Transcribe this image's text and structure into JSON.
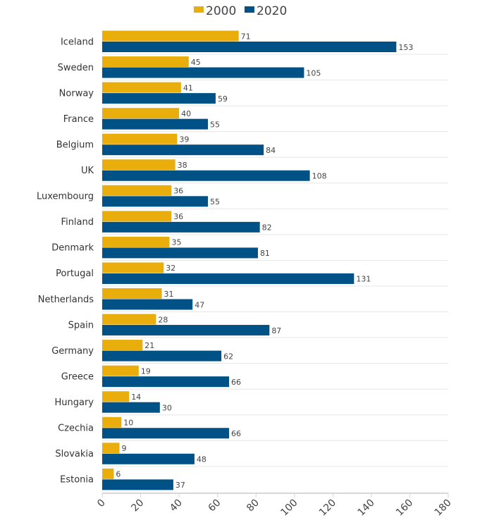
{
  "chart_data": {
    "type": "bar",
    "orientation": "horizontal",
    "title": "",
    "xlabel": "",
    "ylabel": "",
    "xlim": [
      0,
      180
    ],
    "xticks": [
      0,
      20,
      40,
      60,
      80,
      100,
      120,
      140,
      160,
      180
    ],
    "grid": "horizontal separators",
    "legend": "top-center",
    "categories": [
      "Iceland",
      "Sweden",
      "Norway",
      "France",
      "Belgium",
      "UK",
      "Luxembourg",
      "Finland",
      "Denmark",
      "Portugal",
      "Netherlands",
      "Spain",
      "Germany",
      "Greece",
      "Hungary",
      "Czechia",
      "Slovakia",
      "Estonia"
    ],
    "series": [
      {
        "name": "2000",
        "color": "#e9ad0c",
        "values": [
          71,
          45,
          41,
          40,
          39,
          38,
          36,
          36,
          35,
          32,
          31,
          28,
          21,
          19,
          14,
          10,
          9,
          6
        ]
      },
      {
        "name": "2020",
        "color": "#005286",
        "values": [
          153,
          105,
          59,
          55,
          84,
          108,
          55,
          82,
          81,
          131,
          47,
          87,
          62,
          66,
          30,
          66,
          48,
          37
        ]
      }
    ]
  }
}
